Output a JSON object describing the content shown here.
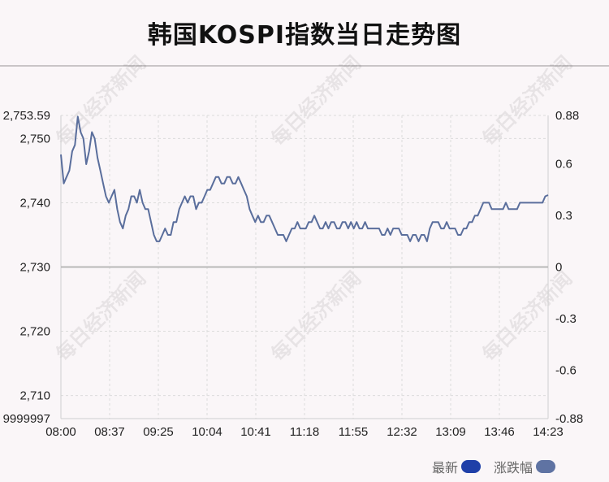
{
  "page": {
    "title": "韩国KOSPI指数当日走势图"
  },
  "colors": {
    "background": "#faf6f8",
    "line": "#5a6e9c",
    "latest_swatch": "#1f3fa8",
    "change_swatch": "#5f73a3",
    "grid": "#dcdcdc",
    "zero_line": "#b8b8b8"
  },
  "chart_data": {
    "type": "line",
    "title": "韩国KOSPI指数当日走势图",
    "x_ticks": [
      "08:00",
      "08:37",
      "09:25",
      "10:04",
      "10:41",
      "11:18",
      "11:55",
      "12:32",
      "13:09",
      "13:46",
      "14:23"
    ],
    "y_left_ticks": [
      "2,753.59",
      "2,750",
      "2,740",
      "2,730",
      "2,720",
      "2,710",
      "9999997"
    ],
    "y_right_ticks": [
      "0.88",
      "0.6",
      "0.3",
      "0",
      "-0.3",
      "-0.6",
      "-0.88"
    ],
    "ylim": [
      2706.41,
      2753.59
    ],
    "y_right_lim": [
      -0.88,
      0.88
    ],
    "grid": true,
    "legend": [
      {
        "label": "最新",
        "color": "#1f3fa8"
      },
      {
        "label": "涨跌幅",
        "color": "#5f73a3"
      }
    ],
    "series": [
      {
        "values": [
          2747.5,
          2743,
          2744,
          2745,
          2748,
          2749,
          2753.4,
          2751,
          2750,
          2746,
          2748,
          2751,
          2750,
          2747,
          2745,
          2743,
          2741,
          2740,
          2741,
          2742,
          2739,
          2737,
          2736,
          2738,
          2739,
          2741,
          2741,
          2740,
          2742,
          2740,
          2739,
          2739,
          2737,
          2735,
          2734,
          2734,
          2735,
          2736,
          2735,
          2735,
          2737,
          2737,
          2739,
          2740,
          2741,
          2740,
          2741,
          2741,
          2739,
          2740,
          2740,
          2741,
          2742,
          2742,
          2743,
          2744,
          2744,
          2743,
          2743,
          2744,
          2744,
          2743,
          2743,
          2744,
          2743,
          2742,
          2741,
          2739,
          2738,
          2737,
          2738,
          2737,
          2737,
          2738,
          2738,
          2737,
          2736,
          2735,
          2735,
          2735,
          2734,
          2735,
          2736,
          2736,
          2737,
          2736,
          2736,
          2736,
          2737,
          2737,
          2738,
          2737,
          2736,
          2736,
          2737,
          2736,
          2737,
          2737,
          2736,
          2736,
          2737,
          2737,
          2736,
          2737,
          2736,
          2737,
          2736,
          2736,
          2737,
          2736,
          2736,
          2736,
          2736,
          2736,
          2735,
          2735,
          2736,
          2735,
          2736,
          2736,
          2736,
          2735,
          2735,
          2735,
          2734,
          2735,
          2735,
          2734,
          2735,
          2735,
          2734,
          2736,
          2737,
          2737,
          2737,
          2736,
          2736,
          2737,
          2736,
          2736,
          2736,
          2735,
          2735,
          2736,
          2736,
          2737,
          2737,
          2738,
          2738,
          2739,
          2740,
          2740,
          2740,
          2739,
          2739,
          2739,
          2739,
          2739,
          2740,
          2739,
          2739,
          2739,
          2739,
          2740,
          2740,
          2740,
          2740,
          2740,
          2740,
          2740,
          2740,
          2740,
          2741,
          2741.2
        ]
      }
    ]
  },
  "watermark": "每日经济新闻"
}
